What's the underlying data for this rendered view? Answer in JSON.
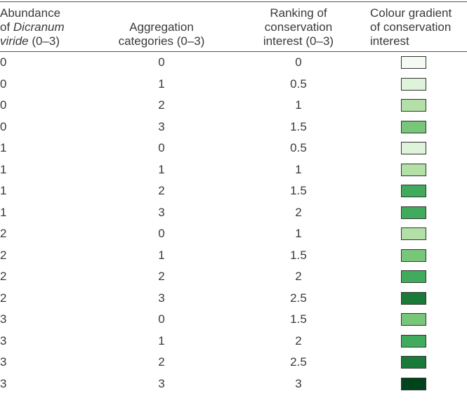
{
  "table": {
    "header": [
      [
        "Abundance",
        "of ",
        "Dicranum",
        "viride",
        " (0–3)"
      ],
      [
        "Aggregation",
        "categories (0–3)"
      ],
      [
        "Ranking of",
        "conservation",
        "interest (0–3)"
      ],
      [
        "Colour gradient",
        "of conservation",
        "interest"
      ]
    ],
    "rows": [
      {
        "abundance": 0,
        "aggregation": 0,
        "ranking": 0,
        "color": "#f5fbf2"
      },
      {
        "abundance": 0,
        "aggregation": 1,
        "ranking": 0.5,
        "color": "#dff2da"
      },
      {
        "abundance": 0,
        "aggregation": 2,
        "ranking": 1,
        "color": "#b3e0a6"
      },
      {
        "abundance": 0,
        "aggregation": 3,
        "ranking": 1.5,
        "color": "#78c679"
      },
      {
        "abundance": 1,
        "aggregation": 0,
        "ranking": 0.5,
        "color": "#dff2da"
      },
      {
        "abundance": 1,
        "aggregation": 1,
        "ranking": 1,
        "color": "#b3e0a6"
      },
      {
        "abundance": 1,
        "aggregation": 2,
        "ranking": 1.5,
        "color": "#41ab5d"
      },
      {
        "abundance": 1,
        "aggregation": 3,
        "ranking": 2,
        "color": "#41ab5d"
      },
      {
        "abundance": 2,
        "aggregation": 0,
        "ranking": 1,
        "color": "#b3e0a6"
      },
      {
        "abundance": 2,
        "aggregation": 1,
        "ranking": 1.5,
        "color": "#78c679"
      },
      {
        "abundance": 2,
        "aggregation": 2,
        "ranking": 2,
        "color": "#41ab5d"
      },
      {
        "abundance": 2,
        "aggregation": 3,
        "ranking": 2.5,
        "color": "#1a7a3a"
      },
      {
        "abundance": 3,
        "aggregation": 0,
        "ranking": 1.5,
        "color": "#78c679"
      },
      {
        "abundance": 3,
        "aggregation": 1,
        "ranking": 2,
        "color": "#41ab5d"
      },
      {
        "abundance": 3,
        "aggregation": 2,
        "ranking": 2.5,
        "color": "#1a7a3a"
      },
      {
        "abundance": 3,
        "aggregation": 3,
        "ranking": 3,
        "color": "#00441b"
      }
    ]
  }
}
